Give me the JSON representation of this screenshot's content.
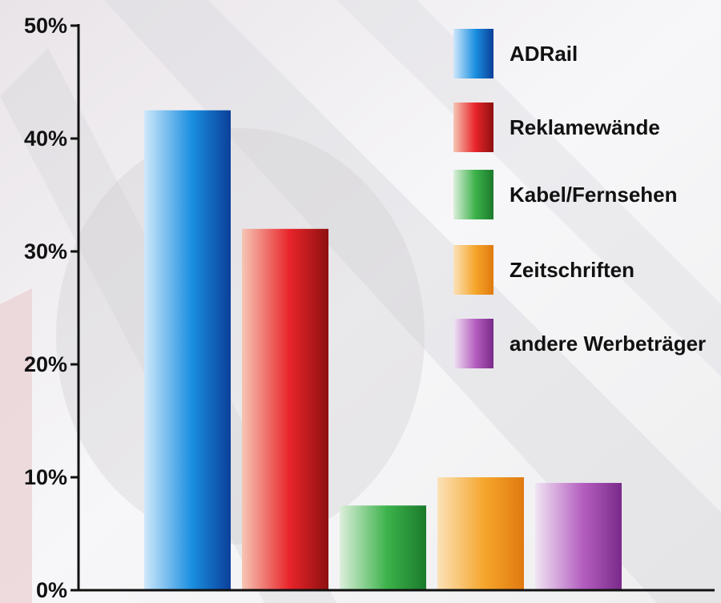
{
  "chart_data": {
    "type": "bar",
    "categories": [
      "ADRail",
      "Reklamewände",
      "Kabel/Fernsehen",
      "Zeitschriften",
      "andere Werbeträger"
    ],
    "values": [
      42.5,
      32,
      7.5,
      10,
      9.5
    ],
    "ylim": [
      0,
      50
    ],
    "yticks": [
      0,
      10,
      20,
      30,
      40,
      50
    ],
    "ytick_labels": [
      "0%",
      "10%",
      "20%",
      "30%",
      "40%",
      "50%"
    ],
    "title": "",
    "xlabel": "",
    "ylabel": "",
    "grid": false,
    "legend_position": "top-right",
    "colors": [
      {
        "light": "#cfe8fb",
        "mid": "#1a8fe0",
        "dark": "#0a3f9a"
      },
      {
        "light": "#f6c6b4",
        "mid": "#e8242a",
        "dark": "#8e1010"
      },
      {
        "light": "#dcefdc",
        "mid": "#3cb24a",
        "dark": "#1b7a2c"
      },
      {
        "light": "#fbe2b8",
        "mid": "#f5a52a",
        "dark": "#e07a10"
      },
      {
        "light": "#f1e4f3",
        "mid": "#b45fc0",
        "dark": "#7a2a8a"
      }
    ]
  }
}
